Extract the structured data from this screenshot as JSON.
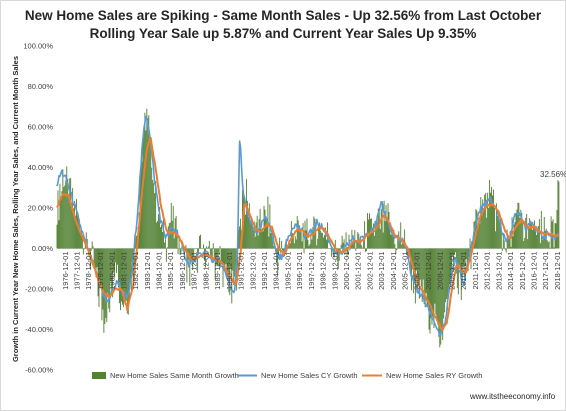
{
  "chart_data": {
    "type": "bar",
    "title": "New Home Sales are Spiking - Same Month Sales - Up 32.56% from Last October",
    "subtitle": "Rolling Year Sale up 5.87% and Current Year Sales Up 9.35%",
    "ylabel": "Growth in Current Year New Home Sales, Rolling Year Sales, and Current Month Sales",
    "xlabel": "",
    "ylim": [
      -0.6,
      1.0
    ],
    "yticks": [
      -0.6,
      -0.4,
      -0.2,
      0.0,
      0.2,
      0.4,
      0.6,
      0.8,
      1.0
    ],
    "ytick_labels": [
      "-60.00%",
      "-40.00%",
      "-20.00%",
      "0.00%",
      "20.00%",
      "40.00%",
      "60.00%",
      "80.00%",
      "100.00%"
    ],
    "xtick_labels": [
      "1976-12-01",
      "1977-12-01",
      "1978-12-01",
      "1979-12-01",
      "1980-12-01",
      "1981-12-01",
      "1982-12-01",
      "1983-12-01",
      "1984-12-01",
      "1985-12-01",
      "1986-12-01",
      "1987-12-01",
      "1988-12-01",
      "1989-12-01",
      "1990-12-01",
      "1991-12-01",
      "1992-12-01",
      "1993-12-01",
      "1994-12-01",
      "1995-12-01",
      "1996-12-01",
      "1997-12-01",
      "1998-12-01",
      "1999-12-01",
      "2000-12-01",
      "2001-12-01",
      "2002-12-01",
      "2003-12-01",
      "2004-12-01",
      "2005-12-01",
      "2006-12-01",
      "2007-12-01",
      "2008-12-01",
      "2009-12-01",
      "2010-12-01",
      "2011-12-01",
      "2012-12-01",
      "2013-12-01",
      "2014-12-01",
      "2015-12-01",
      "2016-12-01",
      "2017-12-01",
      "2018-12-01"
    ],
    "data_label": "32.56%",
    "grid": false,
    "legend_position": "bottom",
    "series": [
      {
        "name": "New Home Sales Same Month Growth",
        "kind": "bar",
        "color": "#548235",
        "anchors": [
          [
            1976.0,
            0.2
          ],
          [
            1976.6,
            0.38
          ],
          [
            1977.0,
            0.3
          ],
          [
            1977.5,
            0.22
          ],
          [
            1978.0,
            0.12
          ],
          [
            1978.5,
            0.02
          ],
          [
            1979.0,
            -0.05
          ],
          [
            1979.5,
            -0.22
          ],
          [
            1980.0,
            -0.32
          ],
          [
            1980.5,
            -0.28
          ],
          [
            1981.0,
            -0.05
          ],
          [
            1981.5,
            -0.24
          ],
          [
            1982.0,
            -0.28
          ],
          [
            1982.5,
            -0.1
          ],
          [
            1982.9,
            0.15
          ],
          [
            1983.3,
            0.5
          ],
          [
            1983.6,
            0.68
          ],
          [
            1983.9,
            0.55
          ],
          [
            1984.3,
            0.3
          ],
          [
            1984.8,
            0.1
          ],
          [
            1985.3,
            0.03
          ],
          [
            1985.8,
            0.14
          ],
          [
            1986.3,
            0.08
          ],
          [
            1986.8,
            -0.02
          ],
          [
            1987.3,
            -0.1
          ],
          [
            1987.8,
            -0.06
          ],
          [
            1988.3,
            -0.02
          ],
          [
            1988.8,
            0.0
          ],
          [
            1989.3,
            -0.06
          ],
          [
            1989.8,
            -0.04
          ],
          [
            1990.3,
            -0.15
          ],
          [
            1990.9,
            -0.22
          ],
          [
            1991.3,
            -0.12
          ],
          [
            1991.6,
            0.08
          ],
          [
            1991.9,
            0.28
          ],
          [
            1992.3,
            0.22
          ],
          [
            1992.8,
            0.1
          ],
          [
            1993.3,
            0.1
          ],
          [
            1993.8,
            0.18
          ],
          [
            1994.3,
            0.1
          ],
          [
            1994.8,
            -0.05
          ],
          [
            1995.3,
            -0.02
          ],
          [
            1995.8,
            0.05
          ],
          [
            1996.3,
            0.1
          ],
          [
            1996.8,
            0.08
          ],
          [
            1997.3,
            0.05
          ],
          [
            1997.8,
            0.1
          ],
          [
            1998.3,
            0.12
          ],
          [
            1998.8,
            0.08
          ],
          [
            1999.3,
            0.02
          ],
          [
            1999.8,
            -0.02
          ],
          [
            2000.3,
            -0.02
          ],
          [
            2000.8,
            0.02
          ],
          [
            2001.3,
            0.05
          ],
          [
            2001.8,
            0.02
          ],
          [
            2002.3,
            0.08
          ],
          [
            2002.8,
            0.1
          ],
          [
            2003.3,
            0.12
          ],
          [
            2003.8,
            0.15
          ],
          [
            2004.3,
            0.12
          ],
          [
            2004.8,
            0.05
          ],
          [
            2005.3,
            0.05
          ],
          [
            2005.8,
            0.02
          ],
          [
            2006.3,
            -0.15
          ],
          [
            2006.8,
            -0.22
          ],
          [
            2007.3,
            -0.25
          ],
          [
            2007.8,
            -0.33
          ],
          [
            2008.3,
            -0.38
          ],
          [
            2008.8,
            -0.42
          ],
          [
            2009.3,
            -0.3
          ],
          [
            2009.8,
            -0.05
          ],
          [
            2010.2,
            -0.15
          ],
          [
            2010.6,
            -0.2
          ],
          [
            2011.0,
            -0.08
          ],
          [
            2011.5,
            0.05
          ],
          [
            2012.0,
            0.2
          ],
          [
            2012.5,
            0.22
          ],
          [
            2013.0,
            0.25
          ],
          [
            2013.5,
            0.18
          ],
          [
            2014.0,
            0.05
          ],
          [
            2014.5,
            0.02
          ],
          [
            2015.0,
            0.12
          ],
          [
            2015.5,
            0.15
          ],
          [
            2016.0,
            0.08
          ],
          [
            2016.5,
            0.12
          ],
          [
            2017.0,
            0.08
          ],
          [
            2017.5,
            0.07
          ],
          [
            2018.0,
            0.08
          ],
          [
            2018.5,
            0.05
          ],
          [
            2018.85,
            0.33
          ]
        ]
      },
      {
        "name": "New Home Sales CY Growth",
        "kind": "line",
        "color": "#5b9bd5",
        "anchors": [
          [
            1976.0,
            0.32
          ],
          [
            1976.4,
            0.38
          ],
          [
            1976.8,
            0.34
          ],
          [
            1977.3,
            0.25
          ],
          [
            1977.8,
            0.15
          ],
          [
            1978.3,
            0.05
          ],
          [
            1978.8,
            -0.03
          ],
          [
            1979.3,
            -0.12
          ],
          [
            1979.8,
            -0.2
          ],
          [
            1980.3,
            -0.27
          ],
          [
            1980.8,
            -0.2
          ],
          [
            1981.2,
            -0.16
          ],
          [
            1981.6,
            -0.22
          ],
          [
            1982.0,
            -0.25
          ],
          [
            1982.4,
            -0.12
          ],
          [
            1982.9,
            0.2
          ],
          [
            1983.3,
            0.52
          ],
          [
            1983.6,
            0.67
          ],
          [
            1983.9,
            0.58
          ],
          [
            1984.3,
            0.35
          ],
          [
            1984.8,
            0.15
          ],
          [
            1985.3,
            0.05
          ],
          [
            1985.8,
            0.1
          ],
          [
            1986.3,
            0.08
          ],
          [
            1986.8,
            -0.02
          ],
          [
            1987.3,
            -0.08
          ],
          [
            1987.8,
            -0.05
          ],
          [
            1988.3,
            -0.03
          ],
          [
            1988.8,
            -0.02
          ],
          [
            1989.3,
            -0.06
          ],
          [
            1989.8,
            -0.06
          ],
          [
            1990.3,
            -0.12
          ],
          [
            1990.8,
            -0.19
          ],
          [
            1991.1,
            -0.23
          ],
          [
            1991.4,
            -0.05
          ],
          [
            1991.6,
            0.59
          ],
          [
            1991.8,
            0.32
          ],
          [
            1992.2,
            0.18
          ],
          [
            1992.7,
            0.1
          ],
          [
            1993.2,
            0.08
          ],
          [
            1993.7,
            0.15
          ],
          [
            1994.2,
            0.12
          ],
          [
            1994.7,
            -0.02
          ],
          [
            1995.2,
            -0.05
          ],
          [
            1995.7,
            0.05
          ],
          [
            1996.2,
            0.12
          ],
          [
            1996.7,
            0.1
          ],
          [
            1997.2,
            0.06
          ],
          [
            1997.7,
            0.08
          ],
          [
            1998.2,
            0.13
          ],
          [
            1998.7,
            0.1
          ],
          [
            1999.2,
            0.04
          ],
          [
            1999.7,
            -0.02
          ],
          [
            2000.2,
            -0.03
          ],
          [
            2000.7,
            0.01
          ],
          [
            2001.2,
            0.05
          ],
          [
            2001.7,
            0.03
          ],
          [
            2002.2,
            0.06
          ],
          [
            2002.7,
            0.09
          ],
          [
            2003.2,
            0.12
          ],
          [
            2003.7,
            0.22
          ],
          [
            2004.2,
            0.14
          ],
          [
            2004.7,
            0.06
          ],
          [
            2005.2,
            0.05
          ],
          [
            2005.7,
            0.02
          ],
          [
            2006.2,
            -0.12
          ],
          [
            2006.7,
            -0.2
          ],
          [
            2007.2,
            -0.24
          ],
          [
            2007.7,
            -0.3
          ],
          [
            2008.2,
            -0.36
          ],
          [
            2008.7,
            -0.43
          ],
          [
            2009.1,
            -0.38
          ],
          [
            2009.5,
            -0.2
          ],
          [
            2009.9,
            -0.05
          ],
          [
            2010.3,
            -0.1
          ],
          [
            2010.7,
            -0.18
          ],
          [
            2011.1,
            -0.06
          ],
          [
            2011.6,
            0.08
          ],
          [
            2012.0,
            0.18
          ],
          [
            2012.5,
            0.22
          ],
          [
            2013.0,
            0.24
          ],
          [
            2013.5,
            0.2
          ],
          [
            2014.0,
            0.08
          ],
          [
            2014.5,
            0.03
          ],
          [
            2015.0,
            0.15
          ],
          [
            2015.5,
            0.18
          ],
          [
            2016.0,
            0.1
          ],
          [
            2016.5,
            0.14
          ],
          [
            2017.0,
            0.08
          ],
          [
            2017.5,
            0.06
          ],
          [
            2018.0,
            0.07
          ],
          [
            2018.5,
            0.04
          ],
          [
            2018.85,
            0.09
          ]
        ]
      },
      {
        "name": "New Home Sales RY Growth",
        "kind": "line",
        "color": "#ed7d31",
        "anchors": [
          [
            1976.0,
            0.2
          ],
          [
            1976.5,
            0.27
          ],
          [
            1977.0,
            0.26
          ],
          [
            1977.5,
            0.16
          ],
          [
            1978.0,
            0.08
          ],
          [
            1978.5,
            0.01
          ],
          [
            1979.0,
            -0.06
          ],
          [
            1979.5,
            -0.15
          ],
          [
            1980.0,
            -0.22
          ],
          [
            1980.5,
            -0.24
          ],
          [
            1981.0,
            -0.2
          ],
          [
            1981.5,
            -0.2
          ],
          [
            1982.0,
            -0.3
          ],
          [
            1982.5,
            -0.18
          ],
          [
            1982.9,
            0.05
          ],
          [
            1983.3,
            0.3
          ],
          [
            1983.7,
            0.5
          ],
          [
            1984.0,
            0.54
          ],
          [
            1984.4,
            0.4
          ],
          [
            1984.9,
            0.2
          ],
          [
            1985.4,
            0.08
          ],
          [
            1985.9,
            0.08
          ],
          [
            1986.4,
            0.06
          ],
          [
            1986.9,
            0.0
          ],
          [
            1987.4,
            -0.05
          ],
          [
            1987.9,
            -0.05
          ],
          [
            1988.4,
            -0.03
          ],
          [
            1988.9,
            -0.03
          ],
          [
            1989.4,
            -0.05
          ],
          [
            1989.9,
            -0.06
          ],
          [
            1990.4,
            -0.1
          ],
          [
            1990.9,
            -0.15
          ],
          [
            1991.3,
            -0.18
          ],
          [
            1991.7,
            0.0
          ],
          [
            1992.0,
            0.22
          ],
          [
            1992.4,
            0.18
          ],
          [
            1992.9,
            0.1
          ],
          [
            1993.4,
            0.08
          ],
          [
            1993.9,
            0.12
          ],
          [
            1994.4,
            0.1
          ],
          [
            1994.9,
            0.0
          ],
          [
            1995.4,
            -0.03
          ],
          [
            1995.9,
            0.04
          ],
          [
            1996.4,
            0.09
          ],
          [
            1996.9,
            0.09
          ],
          [
            1997.4,
            0.06
          ],
          [
            1997.9,
            0.07
          ],
          [
            1998.4,
            0.11
          ],
          [
            1998.9,
            0.09
          ],
          [
            1999.4,
            0.04
          ],
          [
            1999.9,
            -0.01
          ],
          [
            2000.4,
            -0.02
          ],
          [
            2000.9,
            0.01
          ],
          [
            2001.4,
            0.04
          ],
          [
            2001.9,
            0.03
          ],
          [
            2002.4,
            0.06
          ],
          [
            2002.9,
            0.08
          ],
          [
            2003.4,
            0.11
          ],
          [
            2003.9,
            0.17
          ],
          [
            2004.4,
            0.12
          ],
          [
            2004.9,
            0.06
          ],
          [
            2005.4,
            0.04
          ],
          [
            2005.9,
            0.01
          ],
          [
            2006.4,
            -0.1
          ],
          [
            2006.9,
            -0.18
          ],
          [
            2007.4,
            -0.23
          ],
          [
            2007.9,
            -0.29
          ],
          [
            2008.4,
            -0.35
          ],
          [
            2008.9,
            -0.4
          ],
          [
            2009.3,
            -0.36
          ],
          [
            2009.7,
            -0.2
          ],
          [
            2010.1,
            -0.08
          ],
          [
            2010.5,
            -0.1
          ],
          [
            2010.9,
            -0.12
          ],
          [
            2011.3,
            -0.04
          ],
          [
            2011.8,
            0.08
          ],
          [
            2012.2,
            0.17
          ],
          [
            2012.7,
            0.21
          ],
          [
            2013.2,
            0.22
          ],
          [
            2013.7,
            0.18
          ],
          [
            2014.2,
            0.09
          ],
          [
            2014.7,
            0.05
          ],
          [
            2015.2,
            0.11
          ],
          [
            2015.7,
            0.14
          ],
          [
            2016.2,
            0.1
          ],
          [
            2016.7,
            0.11
          ],
          [
            2017.2,
            0.08
          ],
          [
            2017.7,
            0.07
          ],
          [
            2018.2,
            0.07
          ],
          [
            2018.5,
            0.06
          ],
          [
            2018.85,
            0.06
          ]
        ]
      }
    ]
  },
  "footer": "www.itstheeconomy.info"
}
